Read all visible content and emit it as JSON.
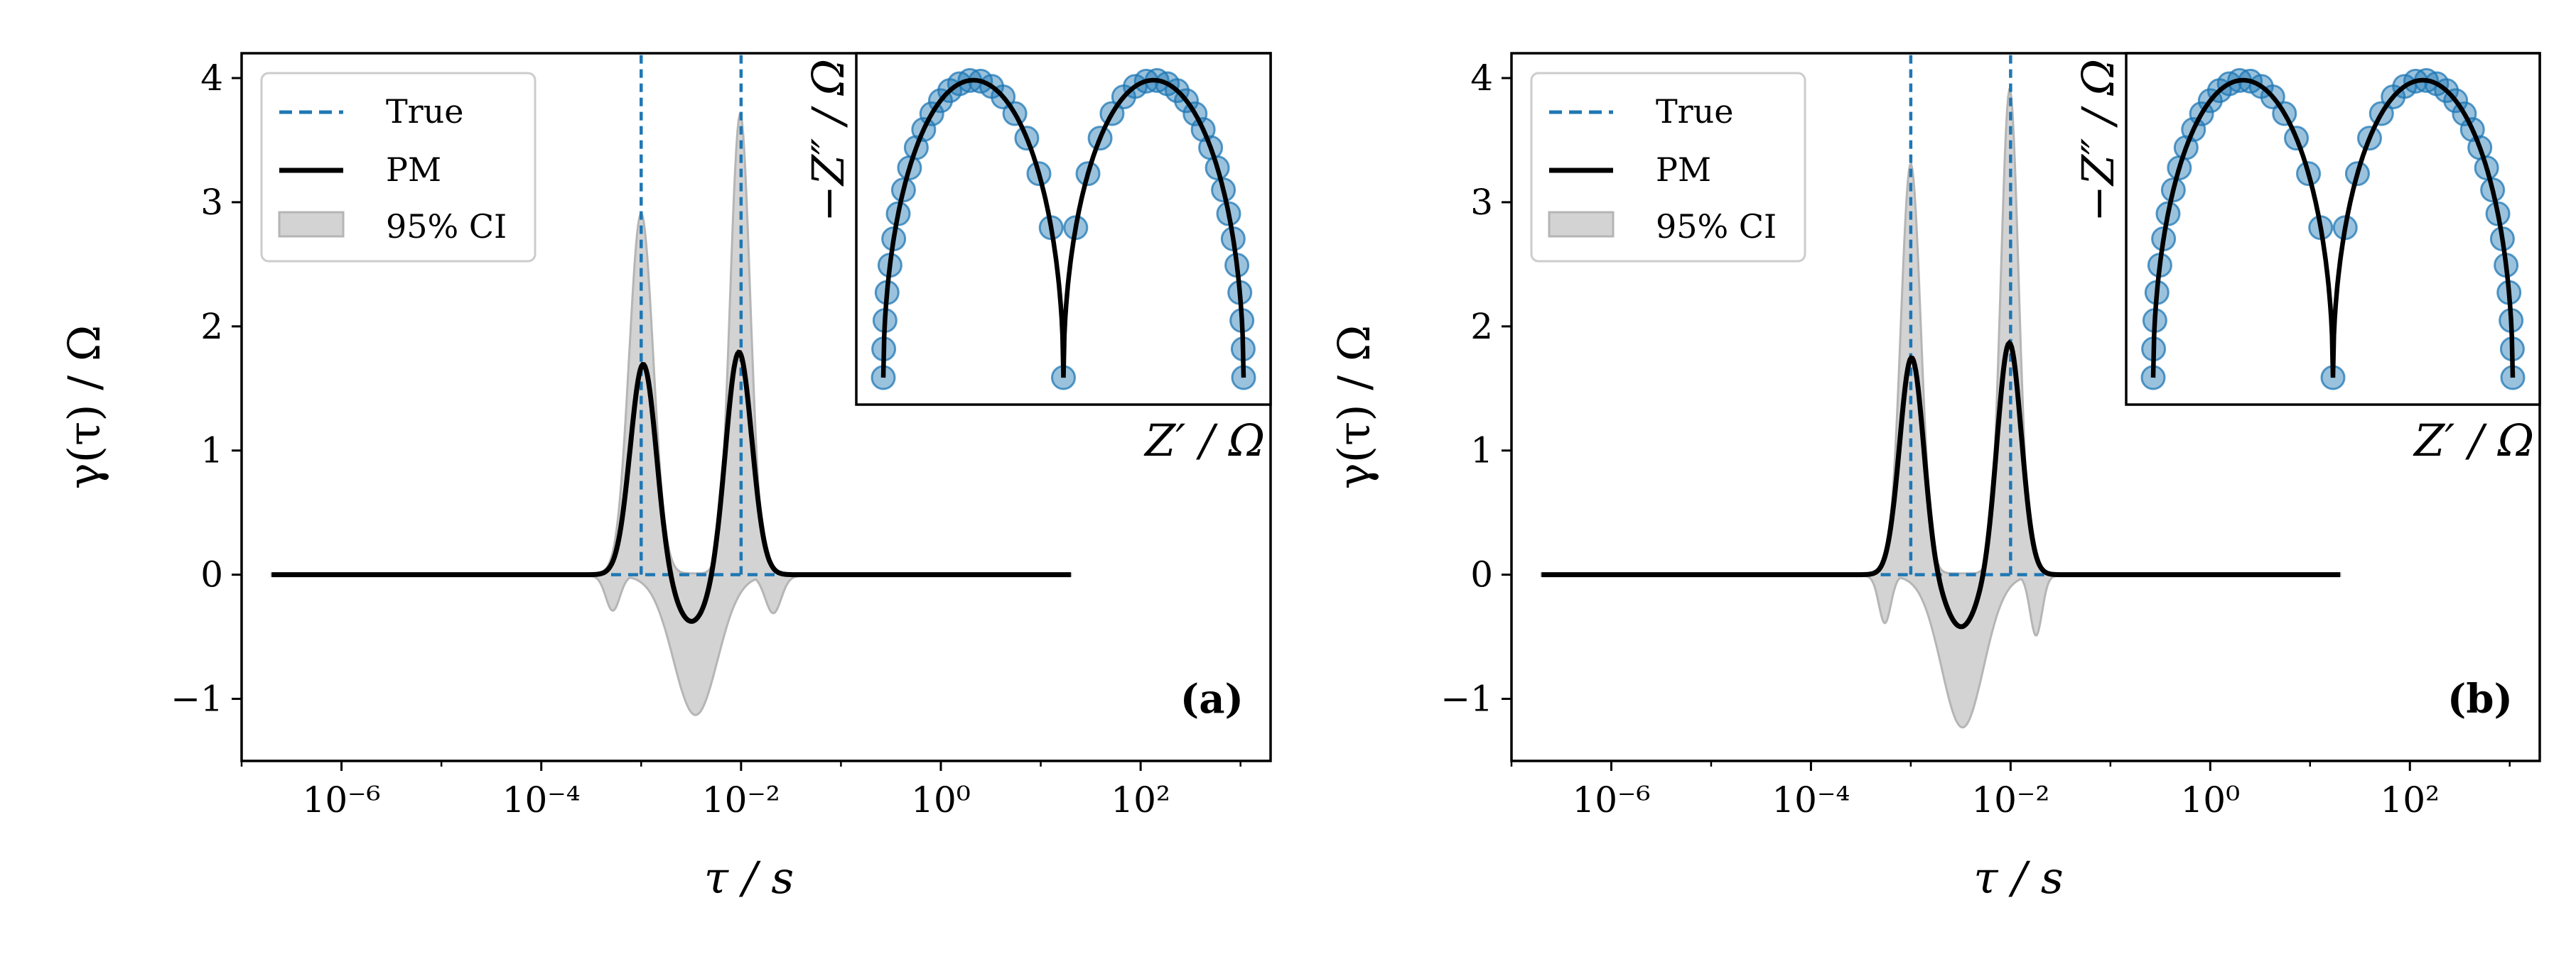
{
  "colors": {
    "true_line": "#1f77b4",
    "pm_line": "#000000",
    "ci_fill": "#d3d3d3",
    "ci_edge": "#b5b5b5",
    "inset_marker": "#1f77b4"
  },
  "chart_data": [
    {
      "type": "line",
      "panel_tag": "(a)",
      "xlabel": "τ / s",
      "ylabel": "γ(τ) / Ω",
      "xscale": "log",
      "xlim": [
        1e-07,
        2000
      ],
      "ylim": [
        -1.5,
        4.2
      ],
      "x_tick_labels": [
        "10⁻⁶",
        "10⁻⁴",
        "10⁻²",
        "10⁰",
        "10²"
      ],
      "y_tick_labels": [
        "−1",
        "0",
        "1",
        "2",
        "3",
        "4"
      ],
      "legend": {
        "position": "upper left",
        "entries": [
          "True",
          "PM",
          "95% CI"
        ]
      },
      "true_peaks": [
        {
          "tau": 0.001,
          "top": 4.2
        },
        {
          "tau": 0.01,
          "top": 4.2
        }
      ],
      "true_baseline": {
        "x_from": 0.0005,
        "x_to": 0.05,
        "y": 0
      },
      "pm_range": [
        2e-07,
        20
      ],
      "pm_peaks": [
        {
          "tau": 0.00105,
          "height": 1.7,
          "log_width": 0.13
        },
        {
          "tau": 0.0095,
          "height": 1.8,
          "log_width": 0.13
        }
      ],
      "pm_dip": {
        "tau": 0.0032,
        "depth": -0.38,
        "log_width": 0.17
      },
      "ci_upper_peaks": [
        {
          "tau": 0.001,
          "height": 2.9,
          "log_width": 0.12
        },
        {
          "tau": 0.0098,
          "height": 3.7,
          "log_width": 0.1
        }
      ],
      "ci_lower_dip": {
        "tau": 0.0035,
        "depth": -1.12,
        "log_width": 0.22
      },
      "ci_lower_shoulders": [
        {
          "tau": 0.00052,
          "depth": -0.28,
          "log_width": 0.07
        },
        {
          "tau": 0.021,
          "depth": -0.3,
          "log_width": 0.08
        }
      ],
      "inset": {
        "xlabel": "Z′ / Ω",
        "ylabel": "−Z″ / Ω",
        "arc_centers": [
          0.25,
          0.75
        ],
        "arc_height": 4.0
      }
    },
    {
      "type": "line",
      "panel_tag": "(b)",
      "xlabel": "τ / s",
      "ylabel": "γ(τ) / Ω",
      "xscale": "log",
      "xlim": [
        1e-07,
        2000
      ],
      "ylim": [
        -1.5,
        4.2
      ],
      "x_tick_labels": [
        "10⁻⁶",
        "10⁻⁴",
        "10⁻²",
        "10⁰",
        "10²"
      ],
      "y_tick_labels": [
        "−1",
        "0",
        "1",
        "2",
        "3",
        "4"
      ],
      "legend": {
        "position": "upper left",
        "entries": [
          "True",
          "PM",
          "95% CI"
        ]
      },
      "true_peaks": [
        {
          "tau": 0.001,
          "top": 4.2
        },
        {
          "tau": 0.01,
          "top": 4.2
        }
      ],
      "true_baseline": {
        "x_from": 0.0005,
        "x_to": 0.05,
        "y": 0
      },
      "pm_range": [
        2e-07,
        20
      ],
      "pm_peaks": [
        {
          "tau": 0.00102,
          "height": 1.75,
          "log_width": 0.12
        },
        {
          "tau": 0.0097,
          "height": 1.87,
          "log_width": 0.12
        }
      ],
      "pm_dip": {
        "tau": 0.0032,
        "depth": -0.42,
        "log_width": 0.16
      },
      "ci_upper_peaks": [
        {
          "tau": 0.001,
          "height": 3.3,
          "log_width": 0.1
        },
        {
          "tau": 0.0098,
          "height": 3.9,
          "log_width": 0.09
        }
      ],
      "ci_lower_dip": {
        "tau": 0.0033,
        "depth": -1.22,
        "log_width": 0.21
      },
      "ci_lower_shoulders": [
        {
          "tau": 0.00055,
          "depth": -0.38,
          "log_width": 0.06
        },
        {
          "tau": 0.018,
          "depth": -0.48,
          "log_width": 0.06
        }
      ],
      "inset": {
        "xlabel": "Z′ / Ω",
        "ylabel": "−Z″ / Ω",
        "arc_centers": [
          0.25,
          0.75
        ],
        "arc_height": 4.0
      }
    }
  ]
}
